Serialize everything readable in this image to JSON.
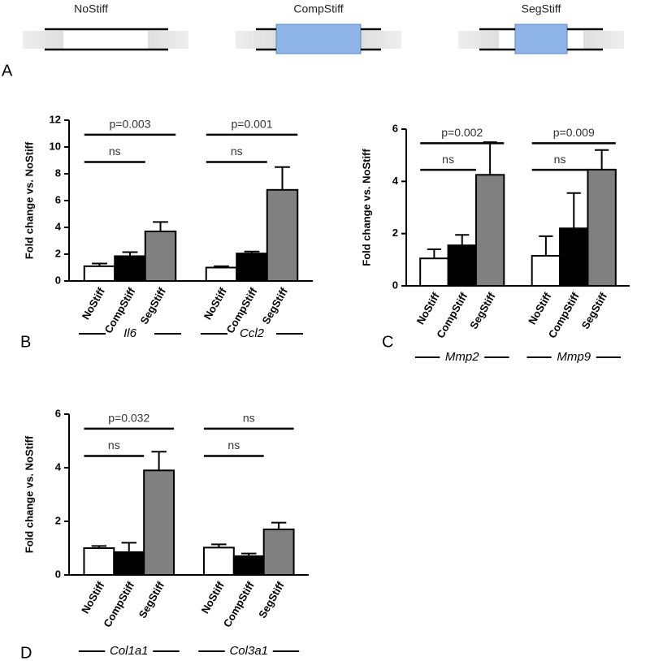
{
  "panel_a": {
    "label": "A",
    "items": [
      "NoStiff",
      "CompStiff",
      "SegStiff"
    ]
  },
  "chart_data": [
    {
      "type": "bar",
      "panel": "B",
      "y_label": "Fold change vs. NoStiff",
      "categories": [
        "Il6",
        "Ccl2"
      ],
      "series": [
        {
          "name": "NoStiff",
          "color": "#ffffff",
          "values": [
            1.1,
            1.0
          ],
          "errors": [
            0.2,
            0.1
          ]
        },
        {
          "name": "CompStiff",
          "color": "#000000",
          "values": [
            1.85,
            2.05
          ],
          "errors": [
            0.3,
            0.15
          ]
        },
        {
          "name": "SegStiff",
          "color": "#808080",
          "values": [
            3.7,
            6.8
          ],
          "errors": [
            0.7,
            1.7
          ]
        }
      ],
      "comparisons": [
        [
          "ns",
          "p=0.003"
        ],
        [
          "ns",
          "p=0.001"
        ]
      ],
      "ylim": [
        0,
        12
      ],
      "yticks": [
        0,
        2,
        4,
        6,
        8,
        10,
        12
      ]
    },
    {
      "type": "bar",
      "panel": "C",
      "y_label": "Fold change vs. NoStiff",
      "categories": [
        "Mmp2",
        "Mmp9"
      ],
      "series": [
        {
          "name": "NoStiff",
          "color": "#ffffff",
          "values": [
            1.05,
            1.15
          ],
          "errors": [
            0.35,
            0.75
          ]
        },
        {
          "name": "CompStiff",
          "color": "#000000",
          "values": [
            1.55,
            2.2
          ],
          "errors": [
            0.4,
            1.35
          ]
        },
        {
          "name": "SegStiff",
          "color": "#808080",
          "values": [
            4.25,
            4.45
          ],
          "errors": [
            1.25,
            0.75
          ]
        }
      ],
      "comparisons": [
        [
          "ns",
          "p=0.002"
        ],
        [
          "ns",
          "p=0.009"
        ]
      ],
      "ylim": [
        0,
        6
      ],
      "yticks": [
        0,
        2,
        4,
        6
      ]
    },
    {
      "type": "bar",
      "panel": "D",
      "y_label": "Fold change vs. NoStiff",
      "categories": [
        "Col1a1",
        "Col3a1"
      ],
      "series": [
        {
          "name": "NoStiff",
          "color": "#ffffff",
          "values": [
            1.0,
            1.02
          ],
          "errors": [
            0.08,
            0.12
          ]
        },
        {
          "name": "CompStiff",
          "color": "#000000",
          "values": [
            0.85,
            0.7
          ],
          "errors": [
            0.35,
            0.1
          ]
        },
        {
          "name": "SegStiff",
          "color": "#808080",
          "values": [
            3.9,
            1.7
          ],
          "errors": [
            0.7,
            0.25
          ]
        }
      ],
      "comparisons": [
        [
          "ns",
          "p=0.032"
        ],
        [
          "ns",
          "ns"
        ]
      ],
      "ylim": [
        0,
        6
      ],
      "yticks": [
        0,
        2,
        4,
        6
      ]
    }
  ]
}
